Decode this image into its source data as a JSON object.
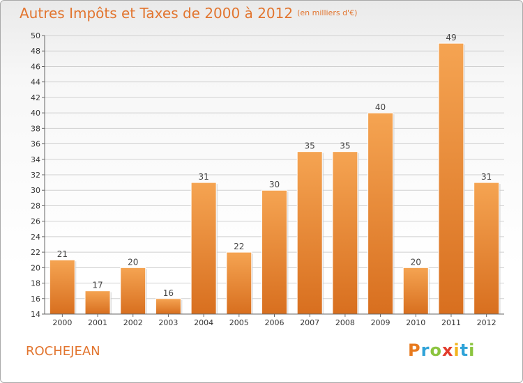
{
  "title": "Autres Impôts et Taxes de 2000 à 2012",
  "unit": "(en milliers d'€)",
  "commune": "ROCHEJEAN",
  "logo": "Proxiti",
  "colors": {
    "accent": "#e2752f",
    "bar_top": "#f5a452",
    "bar_bottom": "#d86f1f",
    "grid": "#d0d0d0"
  },
  "chart_data": {
    "type": "bar",
    "categories": [
      "2000",
      "2001",
      "2002",
      "2003",
      "2004",
      "2005",
      "2006",
      "2007",
      "2008",
      "2009",
      "2010",
      "2011",
      "2012"
    ],
    "values": [
      21,
      17,
      20,
      16,
      31,
      22,
      30,
      35,
      35,
      40,
      20,
      49,
      31
    ],
    "title": "Autres Impôts et Taxes de 2000 à 2012",
    "xlabel": "",
    "ylabel": "",
    "ylim": [
      14,
      50
    ],
    "yticks": [
      14,
      16,
      18,
      20,
      22,
      24,
      26,
      28,
      30,
      32,
      34,
      36,
      38,
      40,
      42,
      44,
      46,
      48,
      50
    ],
    "grid": true,
    "data_labels": true
  }
}
